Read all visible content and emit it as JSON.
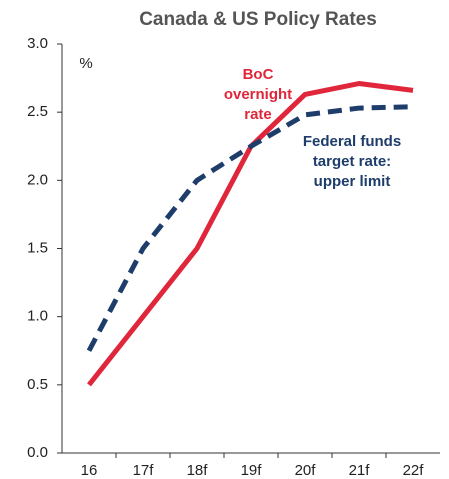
{
  "chart_data": {
    "type": "line",
    "title": "Canada & US Policy Rates",
    "y_unit": "%",
    "categories": [
      "16",
      "17f",
      "18f",
      "19f",
      "20f",
      "21f",
      "22f"
    ],
    "series": [
      {
        "name": "BoC overnight rate",
        "label_lines": [
          "BoC",
          "overnight",
          "rate"
        ],
        "color": "#e0263a",
        "dash": false,
        "values": [
          0.5,
          1.0,
          1.5,
          2.25,
          2.63,
          2.71,
          2.66
        ]
      },
      {
        "name": "Federal funds target rate: upper limit",
        "label_lines": [
          "Federal funds",
          "target rate:",
          "upper limit"
        ],
        "color": "#1f3d6b",
        "dash": true,
        "values": [
          0.75,
          1.5,
          2.0,
          2.25,
          2.48,
          2.53,
          2.54
        ]
      }
    ],
    "ylim": [
      0,
      3
    ],
    "yticks": [
      {
        "value": 0,
        "label": "0.0"
      },
      {
        "value": 0.5,
        "label": "0.5"
      },
      {
        "value": 1,
        "label": "1.0"
      },
      {
        "value": 1.5,
        "label": "1.5"
      },
      {
        "value": 2,
        "label": "2.0"
      },
      {
        "value": 2.5,
        "label": "2.5"
      },
      {
        "value": 3,
        "label": "3.0"
      }
    ],
    "grid": false
  }
}
